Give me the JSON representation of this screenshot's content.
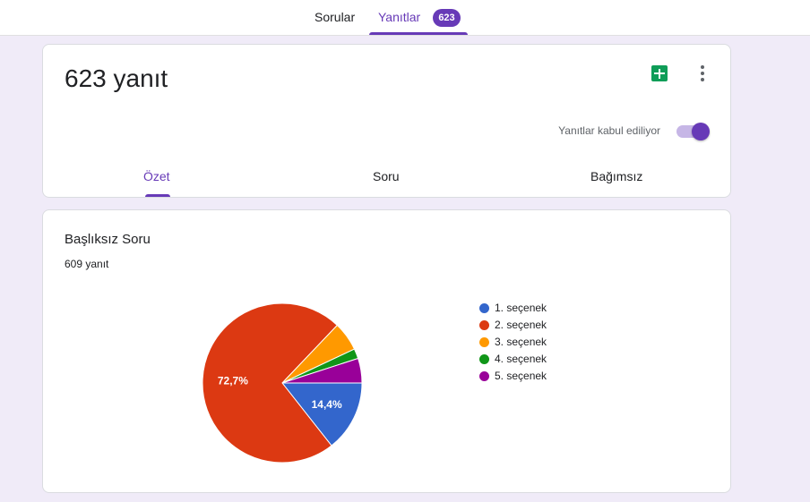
{
  "topnav": {
    "tabs": [
      {
        "label": "Sorular"
      },
      {
        "label": "Yanıtlar",
        "badge": "623",
        "active": true
      }
    ]
  },
  "summary": {
    "title": "623 yanıt",
    "sheets_icon": "google-sheets-icon",
    "more_icon": "more-vert-icon",
    "accepting_label": "Yanıtlar kabul ediliyor",
    "accepting_on": true,
    "tabs": [
      {
        "label": "Özet",
        "active": true
      },
      {
        "label": "Soru"
      },
      {
        "label": "Bağımsız"
      }
    ]
  },
  "question": {
    "title": "Başlıksız Soru",
    "response_count": "609 yanıt"
  },
  "chart_data": {
    "type": "pie",
    "categories": [
      "1. seçenek",
      "2. seçenek",
      "3. seçenek",
      "4. seçenek",
      "5. seçenek"
    ],
    "values": [
      14.4,
      72.7,
      5.9,
      2.0,
      5.0
    ],
    "value_labels": [
      "14,4%",
      "72,7%",
      "",
      "",
      ""
    ],
    "colors": [
      "#3366cc",
      "#dc3912",
      "#ff9900",
      "#109618",
      "#990099"
    ],
    "legend_position": "right"
  },
  "colors": {
    "accent": "#673ab7",
    "background": "#f0ebf8"
  }
}
